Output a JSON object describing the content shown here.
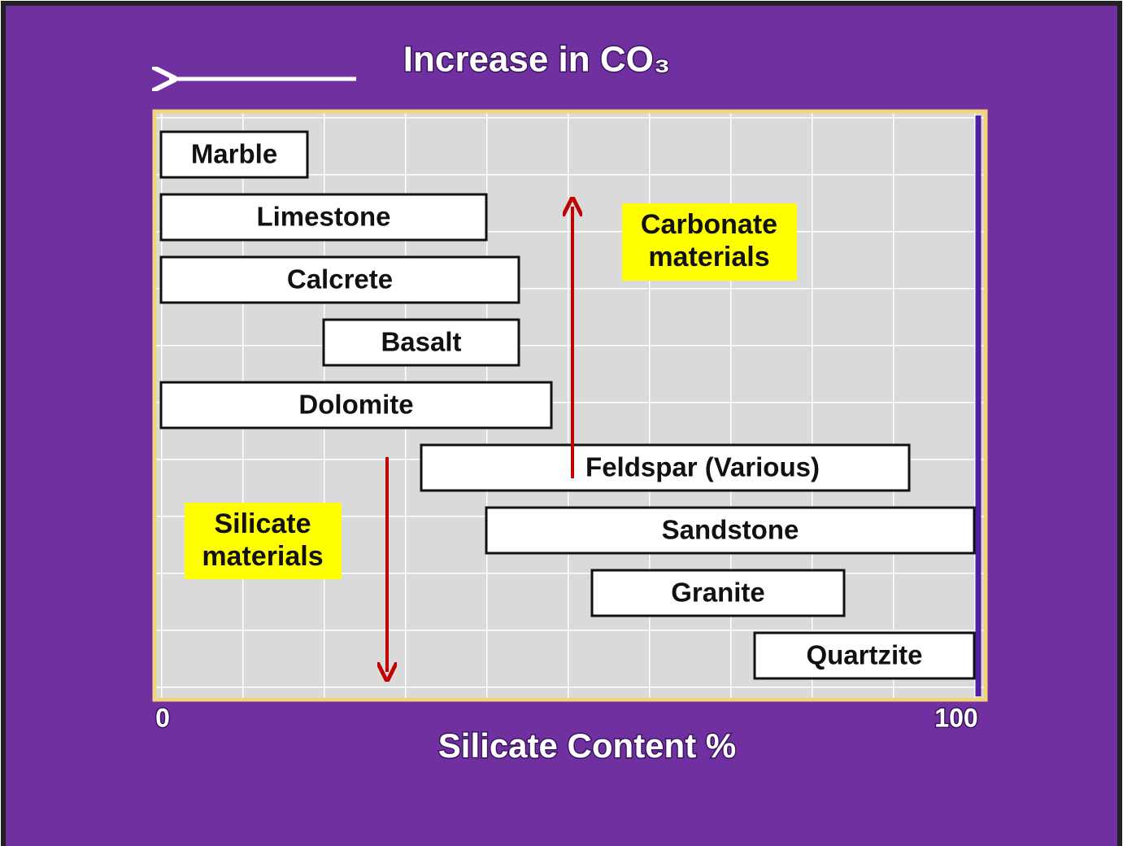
{
  "chart_data": {
    "type": "range-bar",
    "title": "Increase in CO₃",
    "xlabel": "Silicate Content %",
    "categories": [
      "Marble",
      "Limestone",
      "Calcrete",
      "Basalt",
      "Dolomite",
      "Feldspar (Various)",
      "Sandstone",
      "Granite",
      "Quartzite"
    ],
    "values": [
      [
        0,
        18
      ],
      [
        0,
        40
      ],
      [
        0,
        44
      ],
      [
        20,
        44
      ],
      [
        0,
        48
      ],
      [
        32,
        92
      ],
      [
        40,
        100
      ],
      [
        53,
        84
      ],
      [
        73,
        100
      ]
    ],
    "xlim": [
      0,
      100
    ],
    "xticks": [
      0,
      100
    ],
    "color": "#ffffff",
    "annotations": [
      {
        "lines": [
          "Carbonate",
          "materials"
        ]
      },
      {
        "lines": [
          "Silicate",
          "materials"
        ]
      }
    ]
  }
}
